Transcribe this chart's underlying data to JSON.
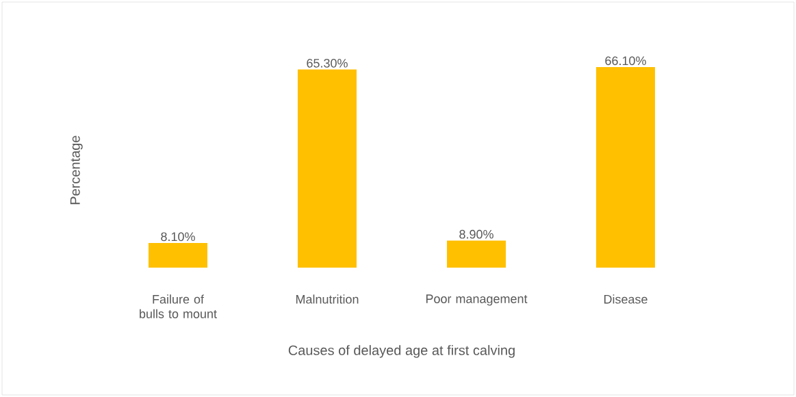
{
  "chart_data": {
    "type": "bar",
    "xlabel": "Causes of delayed age at first calving",
    "ylabel": "Percentage",
    "categories": [
      "Failure of bulls to mount",
      "Malnutrition",
      "Poor management",
      "Disease"
    ],
    "values": [
      8.1,
      65.3,
      8.9,
      66.1
    ],
    "value_labels": [
      "8.10%",
      "65.30%",
      "8.90%",
      "66.10%"
    ],
    "color": "#ffc000"
  }
}
